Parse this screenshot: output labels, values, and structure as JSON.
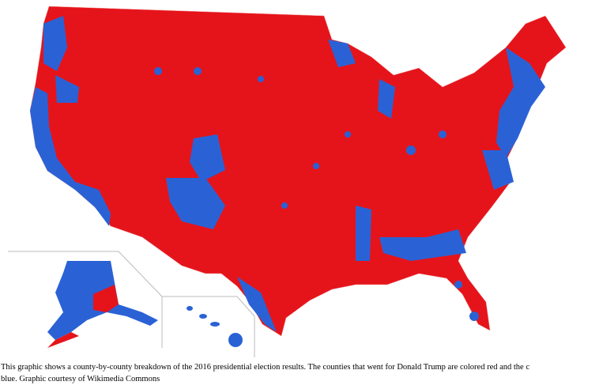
{
  "caption": {
    "lines": [
      "This graphic shows a county-by-county breakdown of the 2016 presidential election results. The counties that went for Donald Trump are colored red and the c",
      "blue.   Graphic courtesy of Wikimedia Commons"
    ]
  }
}
